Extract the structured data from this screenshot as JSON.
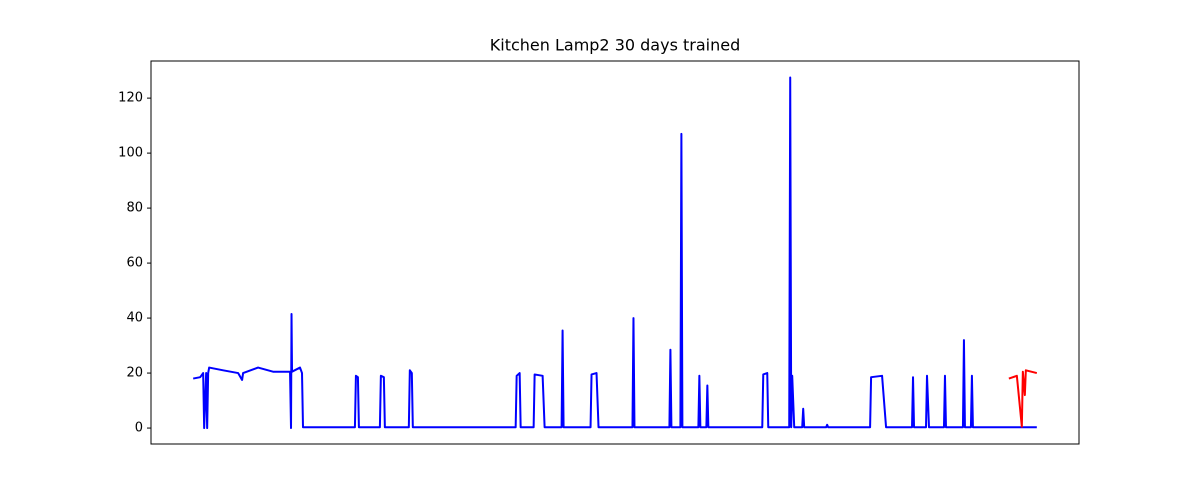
{
  "chart_data": {
    "type": "line",
    "title": "Kitchen Lamp2 30 days trained",
    "xlim": [
      -42.25,
      887.25
    ],
    "ylim": [
      -5.8,
      133.5
    ],
    "yticks": [
      0,
      20,
      40,
      60,
      80,
      100,
      120
    ],
    "grid": false,
    "series": [
      {
        "color": "#0000ff",
        "x": [
          0,
          7,
          10,
          11,
          13,
          14,
          15,
          16,
          30,
          45,
          49,
          50,
          65,
          80,
          97,
          98,
          98.5,
          99,
          107,
          109,
          110,
          162,
          163,
          165,
          166,
          187,
          188,
          191,
          192,
          216,
          217,
          219,
          220,
          323,
          324,
          327,
          328,
          341,
          342,
          350,
          352,
          369,
          370,
          371,
          398,
          399,
          404,
          406,
          440,
          441,
          442,
          477,
          478,
          479,
          488,
          489,
          490,
          506,
          507,
          508,
          514,
          515,
          516,
          570,
          571,
          575,
          576,
          597,
          598,
          599,
          600,
          602,
          610,
          611,
          612,
          634,
          635,
          636,
          678,
          679,
          690,
          694,
          720,
          721,
          722,
          734,
          735,
          737,
          752,
          753,
          754,
          771,
          772,
          773,
          779,
          780,
          781,
          845
        ],
        "values": [
          18,
          18.5,
          20,
          0,
          20,
          0,
          20,
          22,
          21,
          20,
          17.5,
          20,
          22,
          20.5,
          20.5,
          0,
          41.5,
          20.5,
          22,
          20,
          0.3,
          0.3,
          19,
          18.5,
          0.3,
          0.3,
          19,
          18.5,
          0.3,
          0.3,
          21,
          20,
          0.3,
          0.3,
          19,
          20,
          0.3,
          0.3,
          19.5,
          19,
          0.3,
          0.3,
          35.5,
          0.3,
          0.3,
          19.5,
          20,
          0.3,
          0.3,
          40,
          0.3,
          0.3,
          28.5,
          0.3,
          0.3,
          107,
          0.3,
          0.3,
          19,
          0.3,
          0.3,
          15.5,
          0.3,
          0.3,
          19.5,
          20,
          0.3,
          0.3,
          127.5,
          0.3,
          19,
          0.3,
          0.3,
          7,
          0.3,
          0.3,
          1.2,
          0.3,
          0.3,
          18.5,
          19,
          0.3,
          0.3,
          18.5,
          0.3,
          0.3,
          19,
          0.3,
          0.3,
          19,
          0.3,
          0.3,
          32,
          0.3,
          0.3,
          19,
          0.3,
          0.3
        ]
      },
      {
        "color": "#ff0000",
        "x": [
          817,
          825,
          830,
          831,
          833,
          834,
          845
        ],
        "values": [
          18,
          19,
          0.5,
          20.5,
          12,
          21,
          20
        ]
      }
    ]
  }
}
